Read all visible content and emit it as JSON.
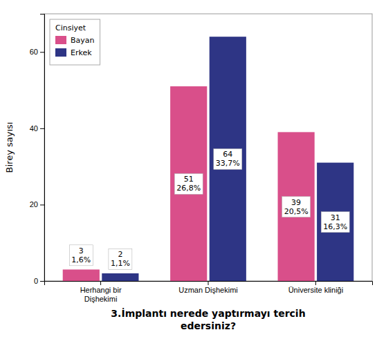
{
  "chart_data": {
    "type": "bar",
    "categories": [
      "Herhangi bir\nDişhekimi",
      "Uzman Dişhekimi",
      "Üniversite kliniği"
    ],
    "series": [
      {
        "name": "Bayan",
        "color": "#D94F8A",
        "values": [
          3,
          51,
          39
        ],
        "value_labels": [
          "3\n1,6%",
          "51\n26,8%",
          "39\n20,5%"
        ]
      },
      {
        "name": "Erkek",
        "color": "#2E3585",
        "values": [
          2,
          64,
          31
        ],
        "value_labels": [
          "2\n1,1%",
          "64\n33,7%",
          "31\n16,3%"
        ]
      }
    ],
    "x_label": "3.İmplantı nerede yaptırmayı tercih\nedersiniz?",
    "y_label": "Birey sayısı",
    "legend_title": "Cinsiyet",
    "legend": "upper left",
    "ylim": [
      0,
      70
    ],
    "yticks": [
      0,
      20,
      40,
      60
    ],
    "grid": false,
    "data_labels": true
  }
}
